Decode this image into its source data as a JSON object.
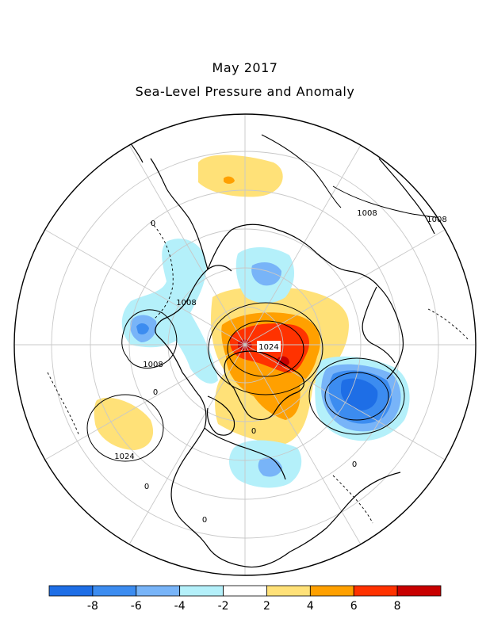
{
  "title": "May 2017",
  "subtitle": "Sea-Level Pressure and Anomaly",
  "contour_labels": [
    "1024",
    "1008",
    "1008",
    "1008",
    "1008",
    "1024",
    "0",
    "0",
    "0",
    "0",
    "0",
    "0"
  ],
  "colorbar": {
    "colors": [
      "#1e6ee6",
      "#3c8cf0",
      "#78b4f8",
      "#b4f0fa",
      "#ffffff",
      "#ffe178",
      "#ffa000",
      "#ff3200",
      "#c80000"
    ],
    "tick_labels": [
      "-8",
      "-6",
      "-4",
      "-2",
      "2",
      "4",
      "6",
      "8"
    ]
  },
  "anomaly_colors": {
    "strong_negative": "#1e6ee6",
    "negative": "#3c8cf0",
    "moderate_negative": "#78b4f8",
    "weak_negative": "#b4f0fa",
    "weak_positive": "#ffe178",
    "positive": "#ffa000",
    "strong_positive": "#ff3200",
    "very_strong_positive": "#c80000"
  }
}
